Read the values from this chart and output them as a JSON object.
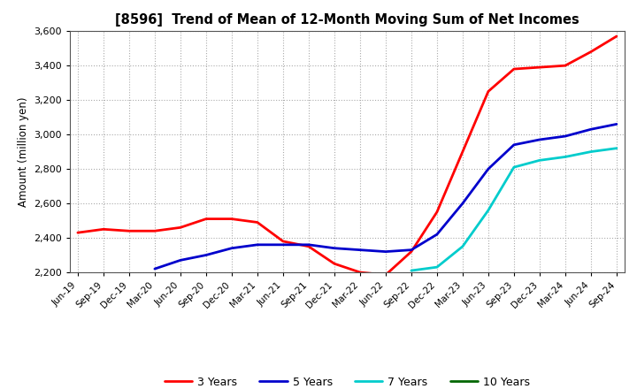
{
  "title": "[8596]  Trend of Mean of 12-Month Moving Sum of Net Incomes",
  "ylabel": "Amount (million yen)",
  "ylim": [
    2200,
    3600
  ],
  "yticks": [
    2200,
    2400,
    2600,
    2800,
    3000,
    3200,
    3400,
    3600
  ],
  "background_color": "#ffffff",
  "grid_color": "#aaaaaa",
  "x_labels": [
    "Jun-19",
    "Sep-19",
    "Dec-19",
    "Mar-20",
    "Jun-20",
    "Sep-20",
    "Dec-20",
    "Mar-21",
    "Jun-21",
    "Sep-21",
    "Dec-21",
    "Mar-22",
    "Jun-22",
    "Sep-22",
    "Dec-22",
    "Mar-23",
    "Jun-23",
    "Sep-23",
    "Dec-23",
    "Mar-24",
    "Jun-24",
    "Sep-24"
  ],
  "series": {
    "3 Years": {
      "color": "#ff0000",
      "data": [
        2430,
        2450,
        2440,
        2440,
        2460,
        2510,
        2510,
        2490,
        2380,
        2350,
        2250,
        2200,
        2185,
        2320,
        2550,
        2900,
        3250,
        3380,
        3390,
        3400,
        3480,
        3570
      ]
    },
    "5 Years": {
      "color": "#0000cc",
      "data": [
        null,
        null,
        null,
        2220,
        2270,
        2300,
        2340,
        2360,
        2360,
        2360,
        2340,
        2330,
        2320,
        2330,
        2420,
        2600,
        2800,
        2940,
        2970,
        2990,
        3030,
        3060
      ]
    },
    "7 Years": {
      "color": "#00cccc",
      "data": [
        null,
        null,
        null,
        null,
        null,
        null,
        null,
        null,
        null,
        null,
        null,
        null,
        null,
        2210,
        2230,
        2350,
        2560,
        2810,
        2850,
        2870,
        2900,
        2920
      ]
    },
    "10 Years": {
      "color": "#006600",
      "data": [
        null,
        null,
        null,
        null,
        null,
        null,
        null,
        null,
        null,
        null,
        null,
        null,
        null,
        null,
        null,
        null,
        null,
        null,
        null,
        null,
        null,
        null
      ]
    }
  },
  "legend_labels": [
    "3 Years",
    "5 Years",
    "7 Years",
    "10 Years"
  ]
}
